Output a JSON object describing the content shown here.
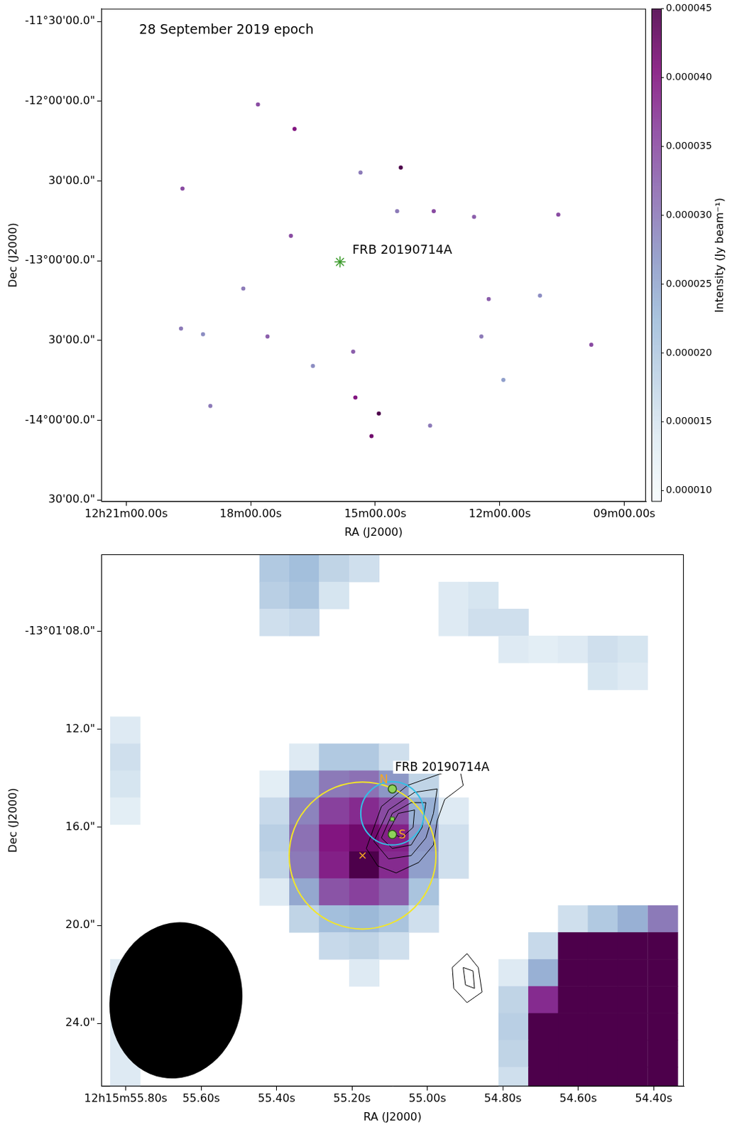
{
  "chart_data": [
    {
      "type": "image",
      "title": "28 September 2019 epoch",
      "x_label": "RA (J2000)",
      "y_label": "Dec (J2000)",
      "grid": false,
      "xlim": [
        21.6,
        8.48
      ],
      "xticks": [
        {
          "value": 21,
          "label": "12h21m00.00s"
        },
        {
          "value": 18,
          "label": "18m00.00s"
        },
        {
          "value": 15,
          "label": "15m00.00s"
        },
        {
          "value": 12,
          "label": "12m00.00s"
        },
        {
          "value": 9,
          "label": "09m00.00s"
        }
      ],
      "ylim": [
        -14.51,
        -11.42
      ],
      "yticks": [
        {
          "value": -11.5,
          "label": "-11°30'00.0\""
        },
        {
          "value": -12,
          "label": "-12°00'00.0\""
        },
        {
          "value": -12.5,
          "label": "30'00.0\""
        },
        {
          "value": -13,
          "label": "-13°00'00.0\""
        },
        {
          "value": -13.5,
          "label": "30'00.0\""
        },
        {
          "value": -14,
          "label": "-14°00'00.0\""
        },
        {
          "value": -14.5,
          "label": "30'00.0\""
        }
      ],
      "colorbar": {
        "label": "Intensity (Jy beam⁻¹)",
        "range": [
          9.2e-06,
          4.5e-05
        ],
        "ticks": [
          {
            "value": 1e-05,
            "label": "0.000010"
          },
          {
            "value": 1.5e-05,
            "label": "0.000015"
          },
          {
            "value": 2e-05,
            "label": "0.000020"
          },
          {
            "value": 2.5e-05,
            "label": "0.000025"
          },
          {
            "value": 3e-05,
            "label": "0.000030"
          },
          {
            "value": 3.5e-05,
            "label": "0.000035"
          },
          {
            "value": 4e-05,
            "label": "0.000040"
          },
          {
            "value": 4.5e-05,
            "label": "0.000045"
          }
        ]
      },
      "sources": {
        "x": [
          14.385,
          14.914,
          15.091,
          15.479,
          15.532,
          17.826,
          16.944,
          17.032,
          17.596,
          19.644,
          19.679,
          13.591,
          12.62,
          12.267,
          12.444,
          10.591,
          9.796,
          18.973,
          13.679,
          15.355,
          18.179,
          14.473,
          16.502,
          11.032,
          19.149,
          11.914
        ],
        "y": [
          -12.416,
          -13.958,
          -14.099,
          -13.857,
          -13.57,
          -12.02,
          -12.174,
          -12.844,
          -13.474,
          -12.548,
          -13.425,
          -12.689,
          -12.725,
          -13.24,
          -13.474,
          -12.711,
          -13.526,
          -13.91,
          -14.033,
          -12.447,
          -13.174,
          -12.689,
          -13.659,
          -13.218,
          -13.46,
          -13.747
        ],
        "values": [
          4.5e-05,
          4.5e-05,
          4.2e-05,
          4e-05,
          3.3e-05,
          3.5e-05,
          4e-05,
          3.5e-05,
          3.3e-05,
          3.5e-05,
          3e-05,
          3.5e-05,
          3.3e-05,
          3.3e-05,
          3e-05,
          3.5e-05,
          3.5e-05,
          3e-05,
          3e-05,
          3e-05,
          3e-05,
          3e-05,
          2.8e-05,
          2.8e-05,
          2.8e-05,
          2.6e-05
        ]
      },
      "target": {
        "label": "FRB 20190714A",
        "x": 15.849,
        "y": -13.007,
        "marker": "star",
        "color": "#3a9a2a"
      }
    },
    {
      "type": "image",
      "x_label": "RA (J2000)",
      "y_label": "Dec (J2000)",
      "grid": false,
      "xlim": [
        55.865,
        54.32
      ],
      "xticks": [
        {
          "value": 55.8,
          "label": "12h15m55.80s"
        },
        {
          "value": 55.6,
          "label": "55.60s"
        },
        {
          "value": 55.4,
          "label": "55.40s"
        },
        {
          "value": 55.2,
          "label": "55.20s"
        },
        {
          "value": 55.0,
          "label": "55.00s"
        },
        {
          "value": 54.8,
          "label": "54.80s"
        },
        {
          "value": 54.6,
          "label": "54.60s"
        },
        {
          "value": 54.4,
          "label": "54.40s"
        }
      ],
      "ylim": [
        26.57,
        4.86
      ],
      "yticks": [
        {
          "value": 8,
          "label": "-13°01'08.0\""
        },
        {
          "value": 12,
          "label": "12.0\""
        },
        {
          "value": 16,
          "label": "16.0\""
        },
        {
          "value": 20,
          "label": "20.0\""
        },
        {
          "value": 24,
          "label": "24.0\""
        }
      ],
      "color_range": [
        9.2e-06,
        4.5e-05
      ],
      "cell_width": 0.0792,
      "cell_height": 1.1,
      "cells": [
        [
          55.406,
          5.43,
          2e-05
        ],
        [
          55.406,
          6.53,
          1.9e-05
        ],
        [
          55.406,
          7.63,
          1.6e-05
        ],
        [
          55.327,
          5.43,
          2.2e-05
        ],
        [
          55.327,
          6.53,
          2.1e-05
        ],
        [
          55.327,
          7.63,
          1.7e-05
        ],
        [
          55.248,
          5.43,
          1.8e-05
        ],
        [
          55.248,
          6.53,
          1.5e-05
        ],
        [
          55.168,
          5.43,
          1.6e-05
        ],
        [
          54.931,
          6.53,
          1.4e-05
        ],
        [
          54.931,
          7.63,
          1.4e-05
        ],
        [
          54.852,
          6.53,
          1.5e-05
        ],
        [
          54.852,
          7.63,
          1.6e-05
        ],
        [
          54.772,
          7.63,
          1.6e-05
        ],
        [
          54.772,
          8.73,
          1.4e-05
        ],
        [
          54.693,
          8.73,
          1.3e-05
        ],
        [
          54.614,
          8.73,
          1.4e-05
        ],
        [
          54.535,
          8.73,
          1.6e-05
        ],
        [
          54.535,
          9.83,
          1.5e-05
        ],
        [
          54.456,
          8.73,
          1.5e-05
        ],
        [
          54.456,
          9.83,
          1.4e-05
        ],
        [
          55.802,
          12.03,
          1.4e-05
        ],
        [
          55.802,
          13.13,
          1.6e-05
        ],
        [
          55.802,
          14.23,
          1.5e-05
        ],
        [
          55.802,
          15.33,
          1.3e-05
        ],
        [
          55.327,
          13.13,
          1.4e-05
        ],
        [
          55.248,
          13.13,
          2e-05
        ],
        [
          55.168,
          13.13,
          2e-05
        ],
        [
          55.089,
          13.13,
          1.6e-05
        ],
        [
          55.406,
          14.23,
          1.3e-05
        ],
        [
          55.327,
          14.23,
          2.4e-05
        ],
        [
          55.248,
          14.23,
          3e-05
        ],
        [
          55.168,
          14.23,
          3.1e-05
        ],
        [
          55.089,
          14.23,
          2.7e-05
        ],
        [
          55.01,
          14.23,
          1.8e-05
        ],
        [
          55.406,
          15.33,
          1.7e-05
        ],
        [
          55.327,
          15.33,
          2.9e-05
        ],
        [
          55.248,
          15.33,
          3.6e-05
        ],
        [
          55.168,
          15.33,
          3.8e-05
        ],
        [
          55.089,
          15.33,
          3.5e-05
        ],
        [
          55.01,
          15.33,
          2.4e-05
        ],
        [
          54.931,
          15.33,
          1.4e-05
        ],
        [
          55.406,
          16.43,
          1.9e-05
        ],
        [
          55.327,
          16.43,
          3.1e-05
        ],
        [
          55.248,
          16.43,
          4e-05
        ],
        [
          55.168,
          16.43,
          4.2e-05
        ],
        [
          55.089,
          16.43,
          3.9e-05
        ],
        [
          55.01,
          16.43,
          2.7e-05
        ],
        [
          54.931,
          16.43,
          1.6e-05
        ],
        [
          55.406,
          17.53,
          1.8e-05
        ],
        [
          55.327,
          17.53,
          3e-05
        ],
        [
          55.248,
          17.53,
          3.9e-05
        ],
        [
          55.168,
          17.53,
          4.5e-05
        ],
        [
          55.089,
          17.53,
          3.8e-05
        ],
        [
          55.01,
          17.53,
          2.6e-05
        ],
        [
          54.931,
          17.53,
          1.6e-05
        ],
        [
          55.406,
          18.63,
          1.4e-05
        ],
        [
          55.327,
          18.63,
          2.5e-05
        ],
        [
          55.248,
          18.63,
          3.4e-05
        ],
        [
          55.168,
          18.63,
          3.6e-05
        ],
        [
          55.089,
          18.63,
          3.3e-05
        ],
        [
          55.01,
          18.63,
          2.1e-05
        ],
        [
          55.327,
          19.73,
          1.8e-05
        ],
        [
          55.248,
          19.73,
          2.2e-05
        ],
        [
          55.168,
          19.73,
          2.3e-05
        ],
        [
          55.089,
          19.73,
          2.1e-05
        ],
        [
          55.01,
          19.73,
          1.6e-05
        ],
        [
          55.248,
          20.83,
          1.7e-05
        ],
        [
          55.168,
          20.83,
          1.8e-05
        ],
        [
          55.089,
          20.83,
          1.6e-05
        ],
        [
          55.168,
          21.93,
          1.4e-05
        ],
        [
          55.802,
          21.93,
          1.4e-05
        ],
        [
          55.802,
          23.03,
          1.4e-05
        ],
        [
          55.802,
          24.13,
          1.4e-05
        ],
        [
          55.802,
          25.23,
          1.4e-05
        ],
        [
          55.802,
          26.33,
          1.4e-05
        ],
        [
          54.614,
          19.73,
          1.6e-05
        ],
        [
          54.535,
          19.73,
          2e-05
        ],
        [
          54.456,
          19.73,
          2.4e-05
        ],
        [
          54.376,
          19.73,
          3e-05
        ],
        [
          54.693,
          20.83,
          1.7e-05
        ],
        [
          54.614,
          20.83,
          5e-05
        ],
        [
          54.535,
          20.83,
          5e-05
        ],
        [
          54.456,
          20.83,
          5e-05
        ],
        [
          54.376,
          20.83,
          5e-05
        ],
        [
          54.772,
          21.93,
          1.4e-05
        ],
        [
          54.693,
          21.93,
          2.4e-05
        ],
        [
          54.614,
          21.93,
          5e-05
        ],
        [
          54.535,
          21.93,
          5e-05
        ],
        [
          54.456,
          21.93,
          5e-05
        ],
        [
          54.376,
          21.93,
          5e-05
        ],
        [
          54.772,
          23.03,
          1.8e-05
        ],
        [
          54.693,
          23.03,
          3.8e-05
        ],
        [
          54.614,
          23.03,
          5e-05
        ],
        [
          54.535,
          23.03,
          5e-05
        ],
        [
          54.456,
          23.03,
          5e-05
        ],
        [
          54.376,
          23.03,
          5e-05
        ],
        [
          54.772,
          24.13,
          1.9e-05
        ],
        [
          54.693,
          24.13,
          4.6e-05
        ],
        [
          54.614,
          24.13,
          5e-05
        ],
        [
          54.535,
          24.13,
          5e-05
        ],
        [
          54.456,
          24.13,
          5e-05
        ],
        [
          54.376,
          24.13,
          5e-05
        ],
        [
          54.772,
          25.23,
          1.8e-05
        ],
        [
          54.693,
          25.23,
          5e-05
        ],
        [
          54.614,
          25.23,
          5e-05
        ],
        [
          54.535,
          25.23,
          5e-05
        ],
        [
          54.456,
          25.23,
          5e-05
        ],
        [
          54.376,
          25.23,
          5e-05
        ],
        [
          54.772,
          26.33,
          1.6e-05
        ],
        [
          54.693,
          26.33,
          5e-05
        ],
        [
          54.614,
          26.33,
          5e-05
        ],
        [
          54.535,
          26.33,
          5e-05
        ],
        [
          54.456,
          26.33,
          5e-05
        ],
        [
          54.376,
          26.33,
          5e-05
        ]
      ],
      "contours": [
        {
          "ra": [
            55.162,
            55.122,
            55.053,
            54.974,
            54.915,
            54.905,
            54.954,
            54.974,
            54.984,
            55.023,
            55.083,
            55.132
          ],
          "dec": [
            16.86,
            15.15,
            14.29,
            13.86,
            13.57,
            14.29,
            14.86,
            15.72,
            16.72,
            17.43,
            17.86,
            17.57
          ]
        },
        {
          "ra": [
            55.142,
            55.103,
            55.034,
            54.974,
            54.984,
            55.004,
            55.043,
            55.103
          ],
          "dec": [
            16.57,
            15.29,
            14.57,
            14.43,
            15.43,
            16.43,
            17.15,
            17.29
          ]
        },
        {
          "ra": [
            55.122,
            55.093,
            55.043,
            55.004,
            55.014,
            55.043,
            55.093
          ],
          "dec": [
            16.43,
            15.43,
            14.99,
            14.99,
            16.0,
            16.72,
            16.86
          ]
        },
        {
          "ra": [
            55.103,
            55.077,
            55.034,
            55.038,
            55.069
          ],
          "dec": [
            16.15,
            15.43,
            15.29,
            16.0,
            16.43
          ]
        },
        {
          "ra": [
            54.934,
            54.895,
            54.865,
            54.855,
            54.895,
            54.93
          ],
          "dec": [
            21.72,
            21.15,
            21.72,
            22.72,
            23.15,
            22.57
          ]
        },
        {
          "ra": [
            54.905,
            54.879,
            54.875,
            54.899
          ],
          "dec": [
            21.72,
            21.86,
            22.57,
            22.43
          ]
        }
      ],
      "circles": [
        {
          "ra": 55.172,
          "dec": 17.15,
          "radius_arcsec": 3.0,
          "color": "#f2e52a"
        },
        {
          "ra": 55.093,
          "dec": 15.43,
          "radius_arcsec": 1.29,
          "color": "#33c0e6"
        }
      ],
      "markers": [
        {
          "label": "N",
          "ra": 55.093,
          "dec": 14.43,
          "marker": "circle",
          "color": "#8ed35a"
        },
        {
          "label": "S",
          "ra": 55.093,
          "dec": 16.29,
          "marker": "circle",
          "color": "#8ed35a"
        },
        {
          "ra": 55.172,
          "dec": 17.15,
          "marker": "x",
          "color": "#f5a623"
        }
      ],
      "target": {
        "label": "FRB 20190714A",
        "ra": 55.093,
        "dec": 15.66,
        "marker": "square",
        "color": "#7fd34e"
      },
      "beam": {
        "ra": 55.667,
        "dec": 23.06,
        "major_arcsec": 6.4,
        "minor_arcsec": 5.4,
        "position_angle": -10
      }
    }
  ]
}
